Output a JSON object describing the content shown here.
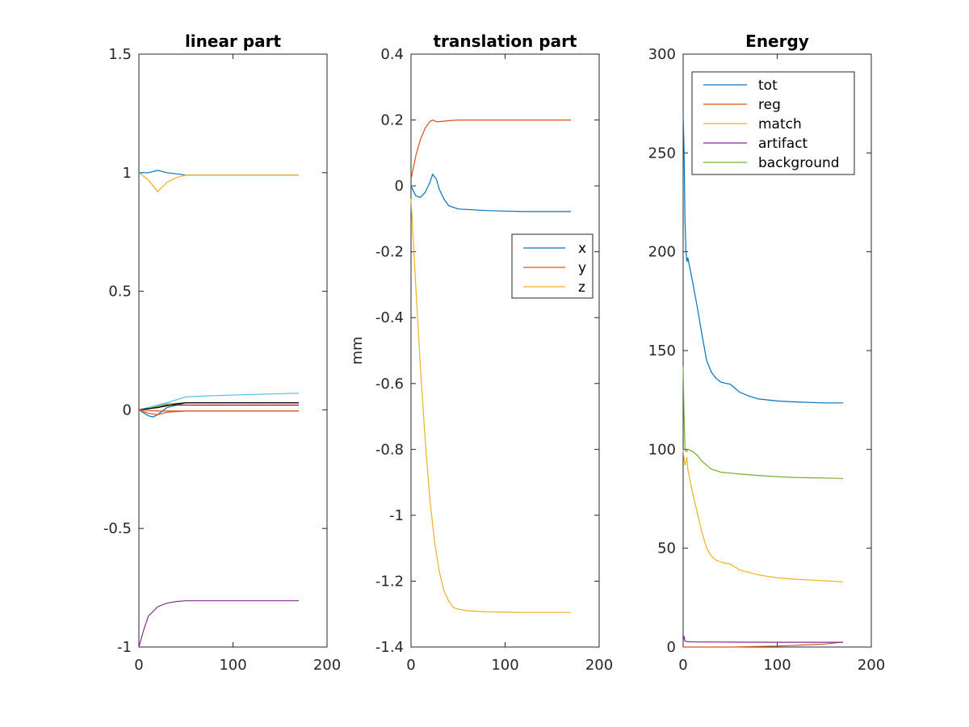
{
  "chart_data": [
    {
      "type": "line",
      "title": "linear part",
      "xlabel": "",
      "ylabel": "",
      "xlim": [
        0,
        200
      ],
      "ylim": [
        -1,
        1.5
      ],
      "xticks": [
        "0",
        "100",
        "200"
      ],
      "yticks": [
        "-1",
        "-0.5",
        "0",
        "0.5",
        "1",
        "1.5"
      ],
      "legend": null,
      "series": [
        {
          "color": "#0072BD",
          "x": [
            0,
            10,
            20,
            30,
            50,
            80,
            120,
            170
          ],
          "y": [
            1,
            1,
            1.01,
            1,
            0.99,
            0.99,
            0.99,
            0.99
          ]
        },
        {
          "color": "#EDB120",
          "x": [
            0,
            10,
            20,
            30,
            40,
            50,
            80,
            120,
            170
          ],
          "y": [
            1,
            0.97,
            0.92,
            0.96,
            0.98,
            0.99,
            0.99,
            0.99,
            0.99
          ]
        },
        {
          "color": "#7E2F8E",
          "x": [
            0,
            5,
            10,
            20,
            30,
            40,
            50,
            80,
            120,
            170
          ],
          "y": [
            -1,
            -0.93,
            -0.87,
            -0.83,
            -0.815,
            -0.808,
            -0.805,
            -0.805,
            -0.805,
            -0.805
          ]
        },
        {
          "color": "#4DBEEE",
          "x": [
            0,
            10,
            20,
            30,
            50,
            80,
            120,
            170
          ],
          "y": [
            0,
            0.01,
            0.02,
            0.03,
            0.055,
            0.06,
            0.065,
            0.07
          ]
        },
        {
          "color": "#0072BD",
          "x": [
            0,
            10,
            15,
            20,
            30,
            50,
            170
          ],
          "y": [
            0,
            -0.025,
            -0.03,
            -0.02,
            0.01,
            0.03,
            0.03
          ]
        },
        {
          "color": "#77AC30",
          "x": [
            0,
            10,
            20,
            30,
            50,
            170
          ],
          "y": [
            0,
            0.005,
            0.015,
            0.025,
            0.03,
            0.03
          ]
        },
        {
          "color": "#A2142F",
          "x": [
            0,
            10,
            20,
            30,
            50,
            170
          ],
          "y": [
            0,
            0.005,
            0.01,
            0.02,
            0.02,
            0.02
          ]
        },
        {
          "color": "#000000",
          "x": [
            0,
            20,
            40,
            50,
            170
          ],
          "y": [
            0,
            0.01,
            0.025,
            0.03,
            0.03
          ]
        },
        {
          "color": "#D95319",
          "x": [
            0,
            10,
            20,
            30,
            50,
            170
          ],
          "y": [
            0,
            -0.015,
            -0.02,
            -0.01,
            -0.005,
            -0.005
          ]
        },
        {
          "color": "#D95319",
          "x": [
            0,
            20,
            40,
            170
          ],
          "y": [
            0,
            -0.005,
            -0.005,
            -0.005
          ]
        }
      ]
    },
    {
      "type": "line",
      "title": "translation part",
      "xlabel": "",
      "ylabel": "mm",
      "xlim": [
        0,
        200
      ],
      "ylim": [
        -1.4,
        0.4
      ],
      "xticks": [
        "0",
        "100",
        "200"
      ],
      "yticks": [
        "-1.4",
        "-1.2",
        "-1",
        "-0.8",
        "-0.6",
        "-0.4",
        "-0.2",
        "0",
        "0.2",
        "0.4"
      ],
      "legend": {
        "position": "right",
        "entries": [
          "x",
          "y",
          "z"
        ]
      },
      "series": [
        {
          "name": "x",
          "color": "#0072BD",
          "x": [
            0,
            5,
            10,
            15,
            20,
            23,
            27,
            30,
            35,
            40,
            50,
            80,
            120,
            170
          ],
          "y": [
            0,
            -0.03,
            -0.035,
            -0.02,
            0.01,
            0.035,
            0.02,
            -0.01,
            -0.04,
            -0.06,
            -0.07,
            -0.075,
            -0.078,
            -0.078
          ]
        },
        {
          "name": "y",
          "color": "#D95319",
          "x": [
            0,
            5,
            10,
            15,
            20,
            23,
            27,
            30,
            40,
            50,
            80,
            120,
            170
          ],
          "y": [
            0.02,
            0.09,
            0.14,
            0.175,
            0.195,
            0.2,
            0.195,
            0.195,
            0.198,
            0.2,
            0.2,
            0.2,
            0.2
          ]
        },
        {
          "name": "z",
          "color": "#EDB120",
          "x": [
            0,
            5,
            10,
            15,
            20,
            25,
            30,
            35,
            40,
            45,
            50,
            60,
            80,
            120,
            170
          ],
          "y": [
            -0.04,
            -0.3,
            -0.55,
            -0.77,
            -0.95,
            -1.08,
            -1.17,
            -1.23,
            -1.26,
            -1.28,
            -1.285,
            -1.29,
            -1.293,
            -1.295,
            -1.295
          ]
        }
      ]
    },
    {
      "type": "line",
      "title": "Energy",
      "xlabel": "",
      "ylabel": "",
      "xlim": [
        0,
        200
      ],
      "ylim": [
        0,
        300
      ],
      "xticks": [
        "0",
        "100",
        "200"
      ],
      "yticks": [
        "0",
        "50",
        "100",
        "150",
        "200",
        "250",
        "300"
      ],
      "legend": {
        "position": "top-left",
        "entries": [
          "tot",
          "reg",
          "match",
          "artifact",
          "background"
        ]
      },
      "series": [
        {
          "name": "tot",
          "color": "#0072BD",
          "x": [
            0,
            1,
            2,
            3,
            4,
            5,
            10,
            15,
            20,
            25,
            30,
            35,
            40,
            45,
            50,
            55,
            60,
            70,
            80,
            100,
            120,
            150,
            170
          ],
          "y": [
            270,
            250,
            215,
            200,
            195,
            197,
            185,
            172,
            158,
            145,
            139,
            136,
            134,
            133.5,
            133,
            131,
            129,
            127,
            125.5,
            124.5,
            124,
            123.5,
            123.5
          ]
        },
        {
          "name": "reg",
          "color": "#D95319",
          "x": [
            0,
            50,
            100,
            150,
            170
          ],
          "y": [
            0,
            0,
            0.5,
            1.5,
            2.5
          ]
        },
        {
          "name": "match",
          "color": "#EDB120",
          "x": [
            0,
            1,
            2,
            3,
            4,
            5,
            10,
            15,
            20,
            25,
            30,
            35,
            40,
            45,
            50,
            55,
            60,
            80,
            100,
            120,
            150,
            170
          ],
          "y": [
            100,
            95,
            92,
            94,
            96,
            90,
            78,
            68,
            58,
            50,
            46,
            44,
            43,
            42.5,
            42,
            40.5,
            39,
            36.5,
            35,
            34.3,
            33.5,
            33
          ]
        },
        {
          "name": "artifact",
          "color": "#7E2F8E",
          "x": [
            0,
            1,
            2,
            3,
            5,
            10,
            50,
            100,
            170
          ],
          "y": [
            3,
            5.5,
            3,
            2.8,
            2.7,
            2.6,
            2.5,
            2.4,
            2.4
          ]
        },
        {
          "name": "background",
          "color": "#77AC30",
          "x": [
            0,
            1,
            2,
            3,
            4,
            5,
            10,
            15,
            20,
            25,
            30,
            40,
            50,
            60,
            80,
            100,
            120,
            150,
            170
          ],
          "y": [
            142,
            115,
            100,
            99,
            99,
            100,
            99,
            97,
            94,
            92,
            90,
            88.5,
            88,
            87.5,
            86.8,
            86.2,
            85.8,
            85.5,
            85.3
          ]
        }
      ]
    }
  ]
}
